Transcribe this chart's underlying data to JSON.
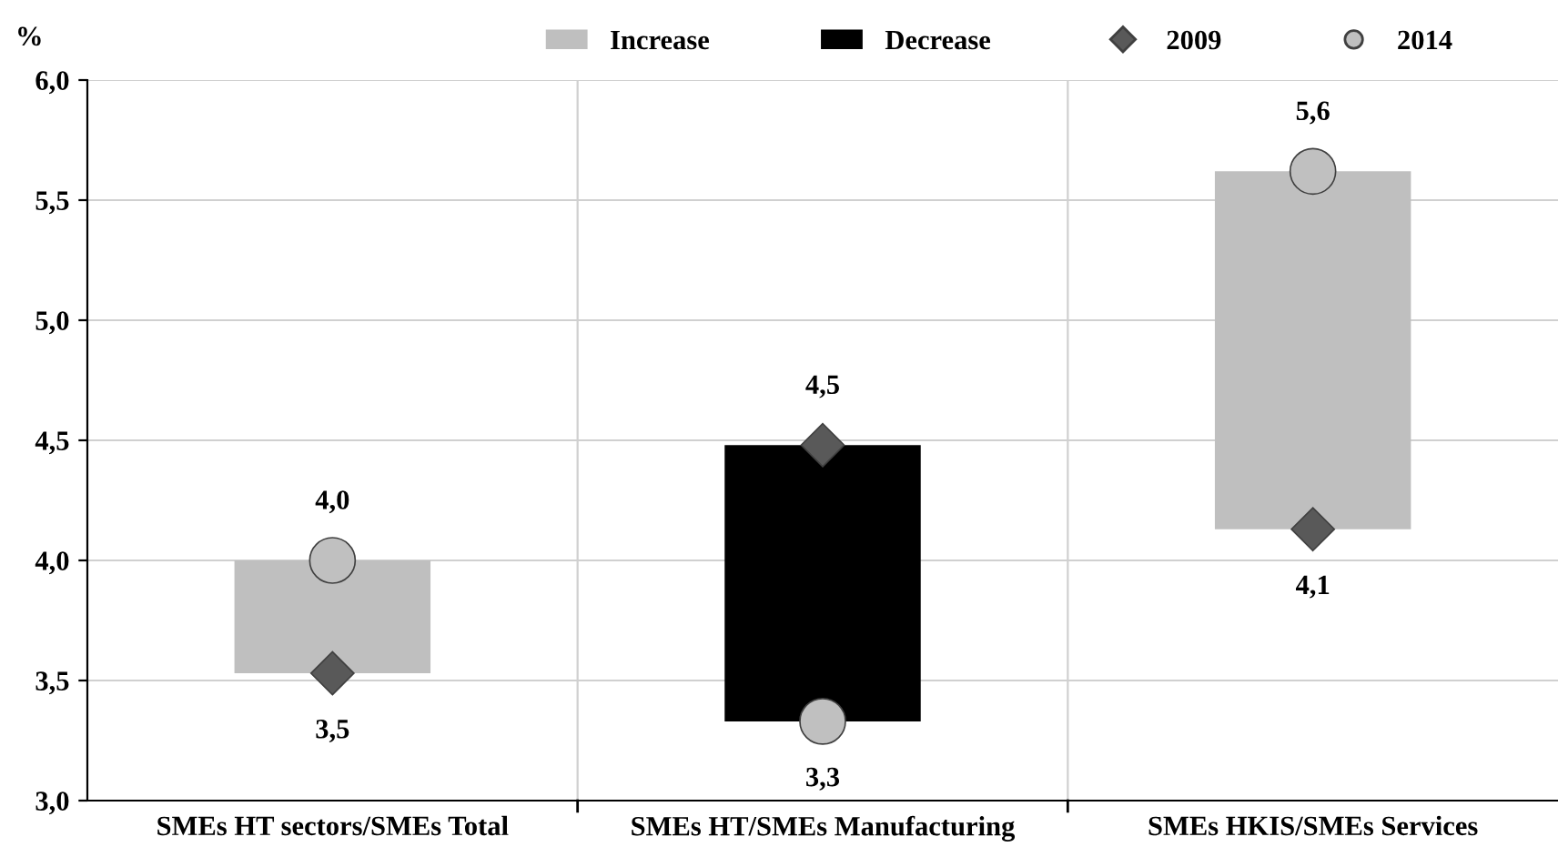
{
  "chart_data": {
    "type": "bar",
    "ylabel": "%",
    "categories": [
      "SMEs HT sectors/SMEs Total",
      "SMEs HT/SMEs Manufacturing",
      "SMEs HKIS/SMEs Services"
    ],
    "series": [
      {
        "name": "Increase",
        "color": "#bfbfbf",
        "base": [
          3.53,
          null,
          4.13
        ],
        "values": [
          0.47,
          null,
          1.49
        ]
      },
      {
        "name": "Decrease",
        "color": "#000000",
        "base": [
          null,
          3.33,
          null
        ],
        "values": [
          null,
          1.15,
          null
        ]
      },
      {
        "name": "2009",
        "type": "scatter",
        "marker": "diamond",
        "color": "#595959",
        "x": [
          "SMEs HT sectors/SMEs Total",
          "SMEs HT/SMEs Manufacturing",
          "SMEs HKIS/SMEs Services"
        ],
        "values": [
          3.53,
          4.48,
          4.13
        ],
        "value_labels": [
          "3,5",
          "4,5",
          "4,1"
        ]
      },
      {
        "name": "2014",
        "type": "scatter",
        "marker": "circle",
        "color": "#c0c0c0",
        "x": [
          "SMEs HT sectors/SMEs Total",
          "SMEs HT/SMEs Manufacturing",
          "SMEs HKIS/SMEs Services"
        ],
        "values": [
          4.0,
          3.33,
          5.62
        ],
        "value_labels": [
          "4,0",
          "3,3",
          "5,6"
        ]
      }
    ],
    "ylim": [
      3.0,
      6.0
    ],
    "yticks": [
      {
        "value": 3.0,
        "label": "3,0"
      },
      {
        "value": 3.5,
        "label": "3,5"
      },
      {
        "value": 4.0,
        "label": "4,0"
      },
      {
        "value": 4.5,
        "label": "4,5"
      },
      {
        "value": 5.0,
        "label": "5,0"
      },
      {
        "value": 5.5,
        "label": "5,5"
      },
      {
        "value": 6.0,
        "label": "6,0"
      }
    ],
    "grid": true,
    "legend": "top"
  }
}
